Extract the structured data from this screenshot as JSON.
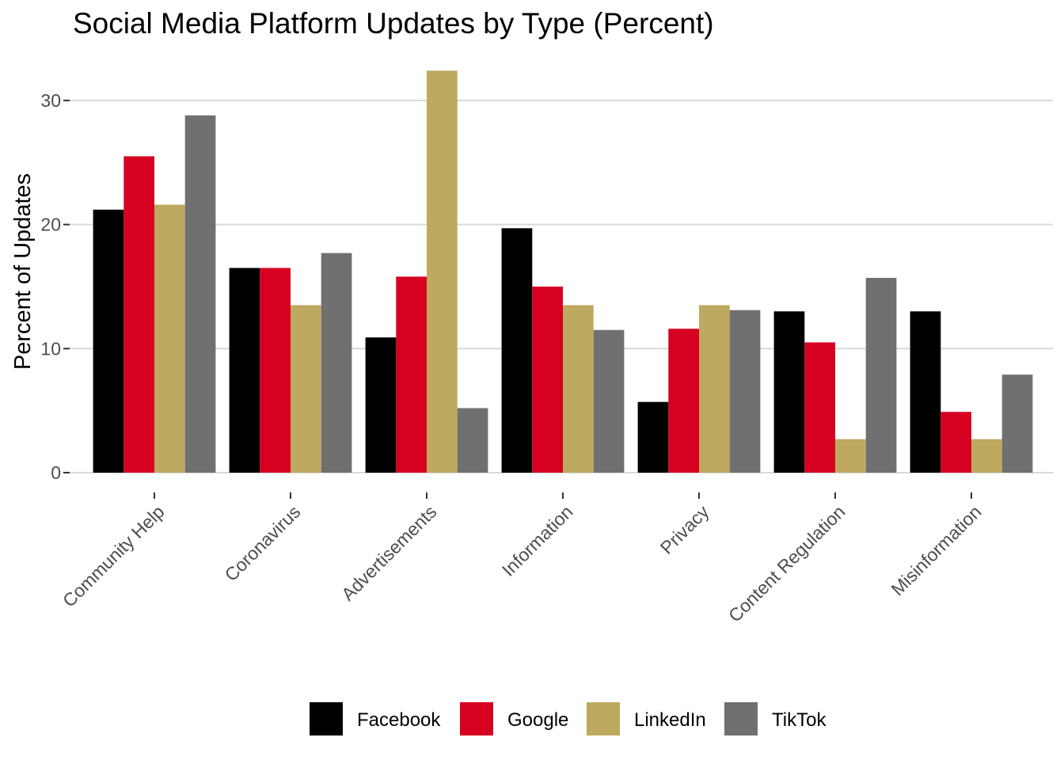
{
  "chart_data": {
    "type": "bar",
    "title": "Social Media Platform Updates by Type (Percent)",
    "xlabel": "",
    "ylabel": "Percent of Updates",
    "ylim": [
      0,
      32.4
    ],
    "yticks": [
      0,
      10,
      20,
      30
    ],
    "grid": true,
    "legend_position": "bottom",
    "categories": [
      "Community Help",
      "Coronavirus",
      "Advertisements",
      "Information",
      "Privacy",
      "Content Regulation",
      "Misinformation"
    ],
    "series": [
      {
        "name": "Facebook",
        "color": "#000000",
        "values": [
          21.2,
          16.5,
          10.9,
          19.7,
          5.7,
          13.0,
          13.0
        ]
      },
      {
        "name": "Google",
        "color": "#D60021",
        "values": [
          25.5,
          16.5,
          15.8,
          15.0,
          11.6,
          10.5,
          4.9
        ]
      },
      {
        "name": "LinkedIn",
        "color": "#BDA95F",
        "values": [
          21.6,
          13.5,
          32.4,
          13.5,
          13.5,
          2.7,
          2.7
        ]
      },
      {
        "name": "TikTok",
        "color": "#707070",
        "values": [
          28.8,
          17.7,
          5.2,
          11.5,
          13.1,
          15.7,
          7.9
        ]
      }
    ]
  }
}
